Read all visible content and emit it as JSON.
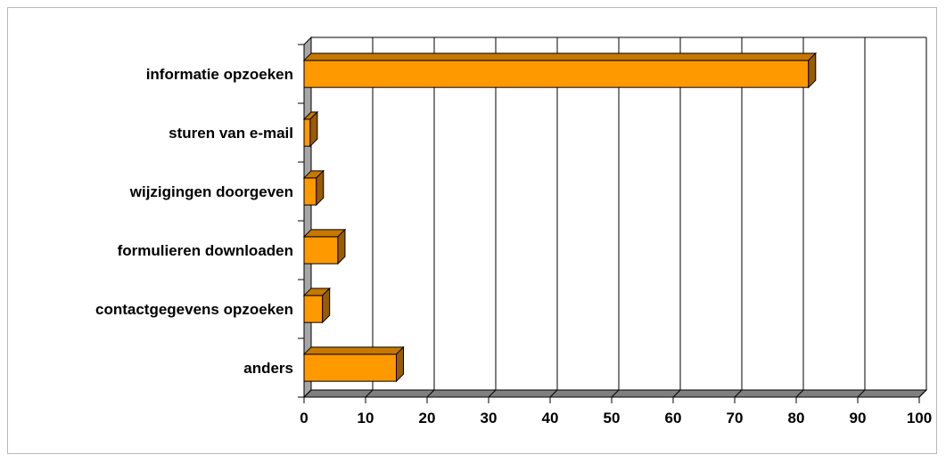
{
  "chart_data": {
    "type": "bar",
    "orientation": "horizontal",
    "style": "3d",
    "title": "",
    "xlabel": "",
    "ylabel": "",
    "categories": [
      "informatie opzoeken",
      "sturen van e-mail",
      "wijzigingen doorgeven",
      "formulieren downloaden",
      "contactgegevens opzoeken",
      "anders"
    ],
    "values": [
      82,
      1,
      2,
      5.5,
      3,
      15
    ],
    "xlim": [
      0,
      100
    ],
    "xticks": [
      0,
      10,
      20,
      30,
      40,
      50,
      60,
      70,
      80,
      90,
      100
    ],
    "grid": true,
    "legend": "none",
    "colors": {
      "bar_front": "#ff9900",
      "bar_top": "#c67800",
      "bar_side": "#9a5c00",
      "side_wall": "#a6a6a6",
      "floor": "#7f7f7f",
      "gridline": "#000000"
    }
  }
}
